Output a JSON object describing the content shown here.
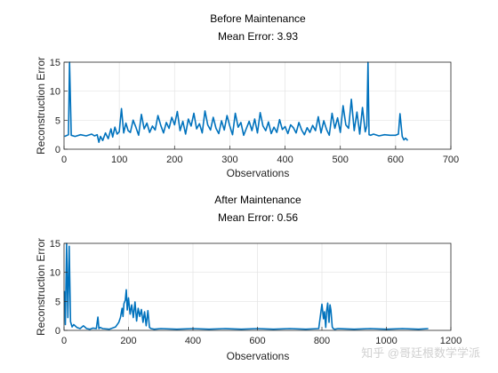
{
  "chart_data": [
    {
      "type": "line",
      "title": "Before Maintenance",
      "subtitle": "Mean Error: 3.93",
      "xlabel": "Observations",
      "ylabel": "Reconstruction Error",
      "xlim": [
        0,
        700
      ],
      "ylim": [
        0,
        15
      ],
      "xticks": [
        0,
        100,
        200,
        300,
        400,
        500,
        600,
        700
      ],
      "yticks": [
        0,
        5,
        10,
        15
      ],
      "grid": true,
      "color": "#0072BD",
      "series": [
        {
          "x": [
            1,
            8,
            10,
            13,
            20,
            30,
            40,
            50,
            55,
            60,
            63,
            66,
            70,
            75,
            80,
            85,
            88,
            92,
            96,
            100,
            104,
            108,
            112,
            116,
            120,
            125,
            130,
            135,
            140,
            145,
            150,
            155,
            160,
            165,
            170,
            175,
            180,
            185,
            190,
            195,
            200,
            205,
            210,
            215,
            220,
            225,
            230,
            235,
            240,
            245,
            250,
            255,
            260,
            265,
            270,
            275,
            280,
            285,
            290,
            295,
            300,
            305,
            310,
            315,
            320,
            325,
            330,
            335,
            340,
            345,
            350,
            355,
            360,
            365,
            370,
            375,
            380,
            385,
            390,
            395,
            400,
            405,
            410,
            415,
            420,
            425,
            430,
            435,
            440,
            445,
            450,
            455,
            460,
            465,
            470,
            475,
            480,
            485,
            490,
            495,
            500,
            505,
            510,
            515,
            520,
            525,
            530,
            535,
            540,
            545,
            548,
            550,
            552,
            555,
            560,
            570,
            580,
            590,
            600,
            605,
            608,
            612,
            615,
            618,
            622
          ],
          "y": [
            2.2,
            2.5,
            15,
            2.4,
            2.2,
            2.5,
            2.3,
            2.6,
            2.3,
            2.5,
            1.2,
            2.2,
            1.5,
            2.8,
            1.8,
            3.5,
            2.1,
            3.8,
            2.6,
            3.0,
            7.0,
            2.8,
            4.5,
            3.2,
            2.9,
            5.0,
            3.8,
            2.4,
            6.0,
            3.5,
            4.5,
            2.9,
            4.0,
            3.3,
            5.8,
            4.1,
            2.8,
            4.6,
            3.6,
            5.5,
            4.2,
            6.5,
            3.2,
            4.8,
            2.6,
            5.2,
            4.0,
            6.2,
            3.5,
            4.4,
            2.8,
            6.6,
            4.2,
            3.3,
            5.5,
            3.6,
            2.7,
            4.9,
            3.3,
            5.8,
            4.0,
            2.5,
            6.2,
            3.8,
            4.6,
            2.4,
            3.6,
            4.8,
            3.2,
            5.2,
            2.8,
            6.3,
            4.0,
            3.2,
            4.7,
            2.7,
            3.8,
            2.9,
            5.1,
            3.4,
            3.9,
            2.7,
            4.2,
            3.7,
            2.8,
            4.6,
            3.3,
            2.5,
            3.7,
            2.9,
            4.1,
            3.2,
            5.6,
            2.8,
            4.9,
            3.4,
            2.4,
            6.2,
            3.6,
            5.4,
            2.9,
            7.5,
            4.2,
            3.6,
            8.6,
            3.2,
            6.4,
            2.6,
            7.2,
            3.0,
            4.0,
            15,
            2.5,
            2.4,
            2.6,
            2.3,
            2.5,
            2.4,
            2.4,
            2.6,
            6.1,
            2.2,
            1.6,
            1.9,
            1.5
          ]
        }
      ]
    },
    {
      "type": "line",
      "title": "After Maintenance",
      "subtitle": "Mean Error: 0.56",
      "xlabel": "Observations",
      "ylabel": "Reconstruction Error",
      "xlim": [
        0,
        1200
      ],
      "ylim": [
        0,
        15
      ],
      "xticks": [
        0,
        200,
        400,
        600,
        800,
        1000,
        1200
      ],
      "yticks": [
        0,
        5,
        10,
        15
      ],
      "grid": true,
      "color": "#0072BD",
      "series": [
        {
          "x": [
            1,
            4,
            8,
            12,
            16,
            20,
            25,
            30,
            40,
            50,
            60,
            70,
            80,
            90,
            100,
            105,
            108,
            112,
            120,
            140,
            160,
            170,
            175,
            180,
            183,
            186,
            190,
            193,
            196,
            200,
            205,
            210,
            215,
            220,
            225,
            230,
            235,
            240,
            245,
            250,
            255,
            260,
            265,
            270,
            280,
            300,
            350,
            400,
            450,
            500,
            550,
            600,
            650,
            700,
            750,
            790,
            800,
            805,
            808,
            812,
            815,
            818,
            822,
            825,
            828,
            832,
            835,
            840,
            850,
            900,
            950,
            1000,
            1050,
            1100,
            1130
          ],
          "y": [
            6.8,
            1.0,
            15,
            2.2,
            14.5,
            1.5,
            0.6,
            1.0,
            0.5,
            0.3,
            0.8,
            0.3,
            0.2,
            0.4,
            0.3,
            2.3,
            0.3,
            0.5,
            0.3,
            0.2,
            0.6,
            1.4,
            2.2,
            3.8,
            2.4,
            4.6,
            5.2,
            7.0,
            3.5,
            5.6,
            2.8,
            4.4,
            2.2,
            4.9,
            1.6,
            3.8,
            2.4,
            3.6,
            1.4,
            3.2,
            0.8,
            3.4,
            0.5,
            0.3,
            0.2,
            0.3,
            0.2,
            0.3,
            0.2,
            0.3,
            0.2,
            0.3,
            0.2,
            0.3,
            0.2,
            0.3,
            4.5,
            2.0,
            3.2,
            0.5,
            3.5,
            4.7,
            1.4,
            4.4,
            3.5,
            0.6,
            0.3,
            0.2,
            0.3,
            0.2,
            0.3,
            0.2,
            0.3,
            0.2,
            0.3
          ]
        }
      ]
    }
  ],
  "watermark": "知乎 @哥廷根数学学派"
}
